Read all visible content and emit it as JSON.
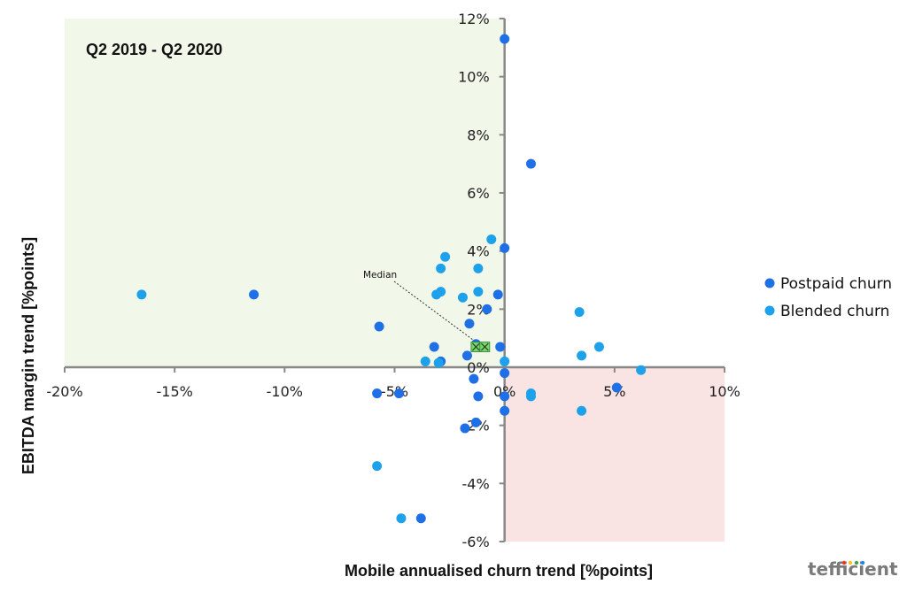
{
  "chart_data": {
    "type": "scatter",
    "period_label": "Q2 2019 - Q2 2020",
    "xlabel": "Mobile annualised churn trend [%points]",
    "ylabel": "EBITDA margin trend [%points]",
    "xlim": [
      -20,
      10
    ],
    "ylim": [
      -6,
      12
    ],
    "x_ticks": [
      -20,
      -15,
      -10,
      -5,
      0,
      5,
      10
    ],
    "y_ticks": [
      -6,
      -4,
      -2,
      0,
      2,
      4,
      6,
      8,
      10,
      12
    ],
    "x_tick_labels": [
      "-20%",
      "-15%",
      "-10%",
      "-5%",
      "0%",
      "5%",
      "10%"
    ],
    "y_tick_labels": [
      "-6%",
      "-4%",
      "-2%",
      "0%",
      "2%",
      "4%",
      "6%",
      "8%",
      "10%",
      "12%"
    ],
    "legend_position": "right",
    "quadrants": {
      "favourable": {
        "x": [
          -20,
          0
        ],
        "y": [
          0,
          12
        ],
        "color": "#f1f8ea"
      },
      "unfavourable": {
        "x": [
          0,
          10
        ],
        "y": [
          -6,
          0
        ],
        "color": "#f9e3e3"
      }
    },
    "series": [
      {
        "name": "Postpaid churn",
        "color": "#1f6fe6",
        "points": [
          {
            "x": 0.0,
            "y": 11.3
          },
          {
            "x": 1.2,
            "y": 7.0
          },
          {
            "x": 0.0,
            "y": 4.1
          },
          {
            "x": -11.4,
            "y": 2.5
          },
          {
            "x": -0.3,
            "y": 2.5
          },
          {
            "x": -0.8,
            "y": 2.0
          },
          {
            "x": -1.6,
            "y": 1.5
          },
          {
            "x": -5.7,
            "y": 1.4
          },
          {
            "x": -3.2,
            "y": 0.7
          },
          {
            "x": -1.3,
            "y": 0.8
          },
          {
            "x": -0.2,
            "y": 0.7
          },
          {
            "x": -1.7,
            "y": 0.4
          },
          {
            "x": -2.9,
            "y": 0.2
          },
          {
            "x": 0.0,
            "y": -0.2
          },
          {
            "x": -1.4,
            "y": -0.4
          },
          {
            "x": 5.1,
            "y": -0.7
          },
          {
            "x": -5.8,
            "y": -0.9
          },
          {
            "x": -4.8,
            "y": -0.9
          },
          {
            "x": -1.2,
            "y": -1.0
          },
          {
            "x": 0.0,
            "y": -1.0
          },
          {
            "x": 0.0,
            "y": -1.5
          },
          {
            "x": -1.3,
            "y": -1.9
          },
          {
            "x": -1.8,
            "y": -2.1
          },
          {
            "x": -3.8,
            "y": -5.2
          }
        ]
      },
      {
        "name": "Blended churn",
        "color": "#1da1ea",
        "points": [
          {
            "x": -0.6,
            "y": 4.4
          },
          {
            "x": -2.7,
            "y": 3.8
          },
          {
            "x": -2.9,
            "y": 3.4
          },
          {
            "x": -1.2,
            "y": 3.4
          },
          {
            "x": -16.5,
            "y": 2.5
          },
          {
            "x": -3.1,
            "y": 2.5
          },
          {
            "x": -2.9,
            "y": 2.6
          },
          {
            "x": -1.9,
            "y": 2.4
          },
          {
            "x": -1.2,
            "y": 2.6
          },
          {
            "x": 3.4,
            "y": 1.9
          },
          {
            "x": 4.3,
            "y": 0.7
          },
          {
            "x": 3.5,
            "y": 0.4
          },
          {
            "x": -3.6,
            "y": 0.2
          },
          {
            "x": -3.0,
            "y": 0.15
          },
          {
            "x": 0.0,
            "y": 0.2
          },
          {
            "x": 6.2,
            "y": -0.1
          },
          {
            "x": 1.2,
            "y": -0.9
          },
          {
            "x": 1.2,
            "y": -1.0
          },
          {
            "x": 3.5,
            "y": -1.5
          },
          {
            "x": -5.8,
            "y": -3.4
          },
          {
            "x": -4.7,
            "y": -5.2
          }
        ]
      }
    ],
    "median": {
      "label": "Median",
      "markers": [
        {
          "x": -1.3,
          "y": 0.7,
          "color": "#7ad36b"
        },
        {
          "x": -0.9,
          "y": 0.7,
          "color": "#7ad36b"
        }
      ]
    }
  },
  "branding": {
    "wordmark": "tefficient"
  }
}
